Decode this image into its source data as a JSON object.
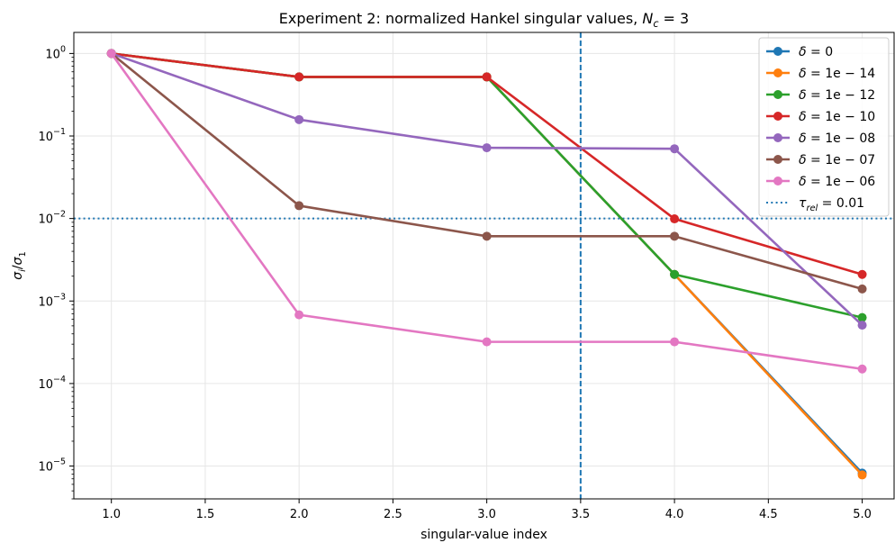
{
  "chart_data": {
    "type": "line",
    "title": "Experiment 2: normalized Hankel singular values, N_c = 3",
    "xlabel": "singular-value index",
    "ylabel": "σ_i/σ_1",
    "yscale": "log",
    "xlim": [
      0.8,
      5.17
    ],
    "ylim": [
      4e-06,
      1.8
    ],
    "x_ticks": [
      1.0,
      1.5,
      2.0,
      2.5,
      3.0,
      3.5,
      4.0,
      4.5,
      5.0
    ],
    "x_tick_labels": [
      "1.0",
      "1.5",
      "2.0",
      "2.5",
      "3.0",
      "3.5",
      "4.0",
      "4.5",
      "5.0"
    ],
    "y_ticks": [
      1e-05,
      0.0001,
      0.001,
      0.01,
      0.1,
      1
    ],
    "y_tick_labels": [
      {
        "base": "10",
        "exp": "−5"
      },
      {
        "base": "10",
        "exp": "−4"
      },
      {
        "base": "10",
        "exp": "−3"
      },
      {
        "base": "10",
        "exp": "−2"
      },
      {
        "base": "10",
        "exp": "−1"
      },
      {
        "base": "10",
        "exp": "0"
      }
    ],
    "grid": true,
    "legend_position": "top-right",
    "x": [
      1,
      2,
      3,
      4,
      5
    ],
    "series": [
      {
        "name": "δ = 0",
        "color": "#1f77b4",
        "values": [
          1.0,
          0.52,
          0.52,
          0.0021,
          8.2e-06
        ]
      },
      {
        "name": "δ = 1e − 14",
        "color": "#ff7f0e",
        "values": [
          1.0,
          0.52,
          0.52,
          0.0021,
          7.8e-06
        ]
      },
      {
        "name": "δ = 1e − 12",
        "color": "#2ca02c",
        "values": [
          1.0,
          0.52,
          0.52,
          0.0021,
          0.00063
        ]
      },
      {
        "name": "δ = 1e − 10",
        "color": "#d62728",
        "values": [
          1.0,
          0.52,
          0.52,
          0.0099,
          0.0021
        ]
      },
      {
        "name": "δ = 1e − 08",
        "color": "#9467bd",
        "values": [
          1.0,
          0.158,
          0.072,
          0.07,
          0.00051
        ]
      },
      {
        "name": "δ = 1e − 07",
        "color": "#8c564b",
        "values": [
          1.0,
          0.0143,
          0.0061,
          0.0061,
          0.0014
        ]
      },
      {
        "name": "δ = 1e − 06",
        "color": "#e377c2",
        "values": [
          1.0,
          0.00068,
          0.00032,
          0.00032,
          0.00015
        ]
      }
    ],
    "reference_lines": [
      {
        "orientation": "horizontal",
        "value": 0.01,
        "style": "dotted",
        "color": "#1f77b4",
        "name": "τ_rel = 0.01"
      },
      {
        "orientation": "vertical",
        "value": 3.5,
        "style": "dashed",
        "color": "#1f77b4"
      }
    ]
  }
}
